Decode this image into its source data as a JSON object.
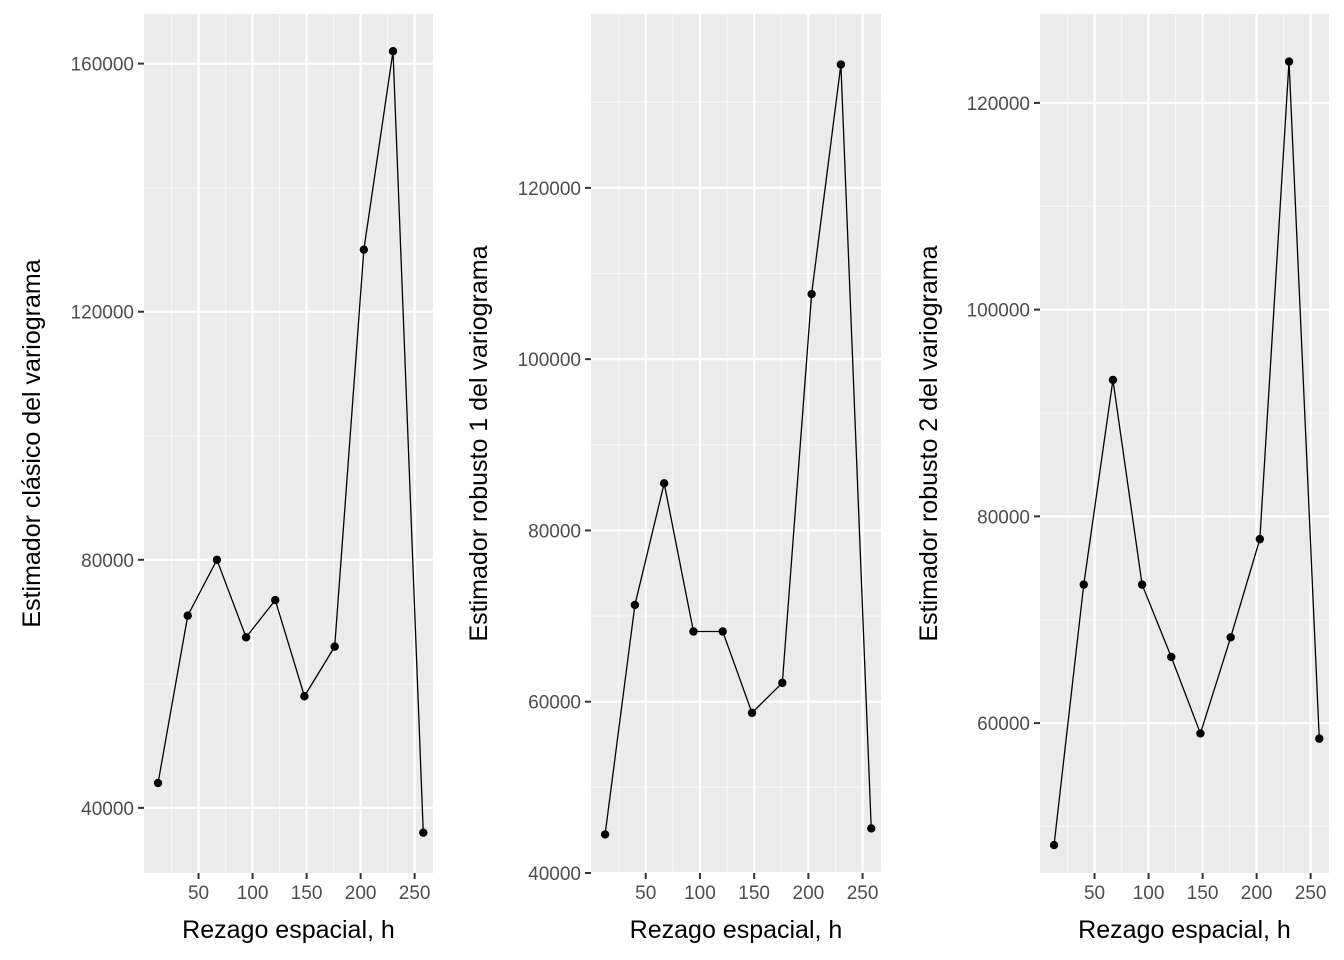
{
  "colors": {
    "panel_background": "#ebebeb",
    "major_grid": "#ffffff",
    "minor_grid": "#f5f5f5",
    "line": "#000000",
    "point": "#000000",
    "tick_text": "#4d4d4d",
    "tick_mark": "#333333"
  },
  "chart_data": [
    {
      "type": "line",
      "title": "",
      "xlabel": "Rezago espacial, h",
      "ylabel": "Estimador clásico del variograma",
      "xlim": [
        -0.5,
        267
      ],
      "ylim": [
        29500,
        168000
      ],
      "x_ticks": [
        50,
        100,
        150,
        200,
        250
      ],
      "y_ticks": [
        40000,
        80000,
        120000,
        160000
      ],
      "y_tick_labels": [
        "40000",
        "80000",
        "120000",
        "160000"
      ],
      "grid": true,
      "markers": true,
      "series": [
        {
          "x": [
            12.5,
            40,
            67,
            94,
            121,
            148,
            176,
            203,
            230,
            258
          ],
          "y": [
            44000,
            71000,
            80000,
            67500,
            73500,
            58000,
            66000,
            130000,
            162000,
            36000
          ]
        }
      ]
    },
    {
      "type": "line",
      "title": "",
      "xlabel": "Rezago espacial, h",
      "ylabel": "Estimador robusto 1 del variograma",
      "xlim": [
        -0.5,
        267
      ],
      "ylim": [
        40000,
        140300
      ],
      "x_ticks": [
        50,
        100,
        150,
        200,
        250
      ],
      "y_ticks": [
        40000,
        60000,
        80000,
        100000,
        120000
      ],
      "y_tick_labels": [
        "40000",
        "60000",
        "80000",
        "100000",
        "120000"
      ],
      "grid": true,
      "markers": true,
      "series": [
        {
          "x": [
            12.5,
            40,
            67,
            94,
            121,
            148,
            176,
            203,
            230,
            258
          ],
          "y": [
            44500,
            71300,
            85500,
            68200,
            68200,
            58700,
            62200,
            107600,
            134400,
            45200
          ]
        }
      ]
    },
    {
      "type": "line",
      "title": "",
      "xlabel": "Rezago espacial, h",
      "ylabel": "Estimador robusto 2 del variograma",
      "xlim": [
        -0.5,
        267
      ],
      "ylim": [
        45500,
        128600
      ],
      "x_ticks": [
        50,
        100,
        150,
        200,
        250
      ],
      "y_ticks": [
        60000,
        80000,
        100000,
        120000
      ],
      "y_tick_labels": [
        "60000",
        "80000",
        "100000",
        "120000"
      ],
      "grid": true,
      "markers": true,
      "series": [
        {
          "x": [
            12.5,
            40,
            67,
            94,
            121,
            148,
            176,
            203,
            230,
            258
          ],
          "y": [
            48200,
            73400,
            93200,
            73400,
            66400,
            59000,
            68300,
            77800,
            124000,
            58500
          ]
        }
      ]
    }
  ]
}
